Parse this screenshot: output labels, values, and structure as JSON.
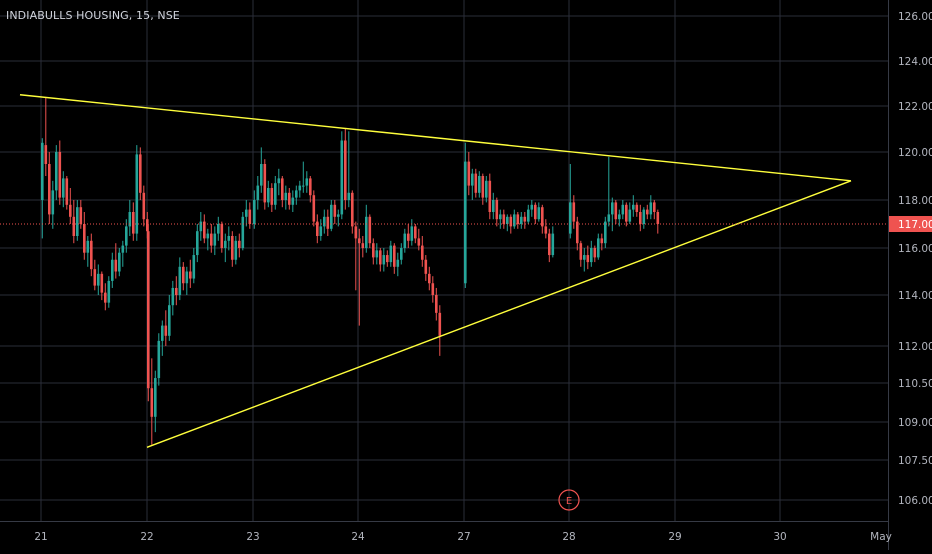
{
  "chart_data": {
    "type": "candlestick",
    "title": "INDIABULLS HOUSING, 15, NSE",
    "y_ticks": [
      106.0,
      107.5,
      109.0,
      110.5,
      112.0,
      114.0,
      116.0,
      118.0,
      120.0,
      122.0,
      124.0,
      126.0
    ],
    "y_tick_labels": [
      "106.00",
      "107.50",
      "109.00",
      "110.50",
      "112.00",
      "114.00",
      "116.00",
      "118.00",
      "120.00",
      "122.00",
      "124.00",
      "126.00"
    ],
    "x_tick_labels": [
      "21",
      "22",
      "23",
      "24",
      "27",
      "28",
      "29",
      "30",
      "May"
    ],
    "last_price": 117.0,
    "last_price_label": "117.00",
    "event_marker": "E",
    "grid": true,
    "colors": {
      "background": "#000000",
      "grid": "#2a2e39",
      "up": "#26a69a",
      "down": "#ef5350",
      "trendline": "#ffff3c",
      "price_line": "#ef5350",
      "axis_text": "#b2b5be"
    },
    "trendlines": [
      {
        "name": "upper",
        "from": {
          "x": "21",
          "y": 122.5
        },
        "to": {
          "x": "30",
          "y": 118.8
        }
      },
      {
        "name": "lower",
        "from": {
          "x": "22",
          "y": 108.0
        },
        "to": {
          "x": "30",
          "y": 118.8
        }
      }
    ],
    "candles": [
      {
        "day": "21",
        "ohlc": [
          [
            118.0,
            120.6,
            116.4,
            120.4
          ],
          [
            120.3,
            122.4,
            119.0,
            119.5
          ],
          [
            119.5,
            120.0,
            117.0,
            117.4
          ],
          [
            117.4,
            118.8,
            116.8,
            118.4
          ],
          [
            118.4,
            120.3,
            118.0,
            120.0
          ],
          [
            120.0,
            120.5,
            117.8,
            118.1
          ],
          [
            118.1,
            119.2,
            117.7,
            118.9
          ],
          [
            118.9,
            119.0,
            117.6,
            117.8
          ],
          [
            117.8,
            118.5,
            117.0,
            117.3
          ],
          [
            117.3,
            118.0,
            116.2,
            116.5
          ],
          [
            116.5,
            118.0,
            116.3,
            117.7
          ],
          [
            117.7,
            118.0,
            116.8,
            117.0
          ],
          [
            117.0,
            117.5,
            115.5,
            115.8
          ],
          [
            115.8,
            116.5,
            115.2,
            116.3
          ],
          [
            116.3,
            116.6,
            114.8,
            115.1
          ],
          [
            115.1,
            115.5,
            114.2,
            114.4
          ],
          [
            114.4,
            115.3,
            114.0,
            114.9
          ],
          [
            114.9,
            115.0,
            113.8,
            114.1
          ],
          [
            114.1,
            114.5,
            113.4,
            113.7
          ],
          [
            113.7,
            114.8,
            113.5,
            114.6
          ],
          [
            114.6,
            115.8,
            114.3,
            115.5
          ],
          [
            115.5,
            116.2,
            114.7,
            115.0
          ],
          [
            115.0,
            116.0,
            114.8,
            115.8
          ],
          [
            115.8,
            116.3,
            115.2,
            116.1
          ],
          [
            116.1,
            117.2,
            115.8,
            116.9
          ],
          [
            116.9,
            118.0,
            116.5,
            117.5
          ],
          [
            117.5,
            117.9,
            116.3,
            116.6
          ],
          [
            116.6,
            120.3,
            116.3,
            119.9
          ],
          [
            119.9,
            120.2,
            118.0,
            118.3
          ],
          [
            118.3,
            118.6,
            116.9,
            117.2
          ],
          [
            117.2,
            117.5,
            116.4,
            116.7
          ]
        ]
      },
      {
        "day": "22",
        "ohlc": [
          [
            116.7,
            117.0,
            109.8,
            110.3
          ],
          [
            110.3,
            111.5,
            108.1,
            109.2
          ],
          [
            109.2,
            111.0,
            108.6,
            110.7
          ],
          [
            110.7,
            112.5,
            110.4,
            112.2
          ],
          [
            112.2,
            113.0,
            111.6,
            112.8
          ],
          [
            112.8,
            113.4,
            112.0,
            112.4
          ],
          [
            112.4,
            114.0,
            112.2,
            113.6
          ],
          [
            113.6,
            114.6,
            113.2,
            114.3
          ],
          [
            114.3,
            114.8,
            113.6,
            114.0
          ],
          [
            114.0,
            115.6,
            113.8,
            115.2
          ],
          [
            115.2,
            115.4,
            114.2,
            114.5
          ],
          [
            114.5,
            115.2,
            114.0,
            115.0
          ],
          [
            115.0,
            115.5,
            114.3,
            114.7
          ],
          [
            114.7,
            116.0,
            114.5,
            115.7
          ],
          [
            115.7,
            117.0,
            115.4,
            116.7
          ],
          [
            116.7,
            117.5,
            116.3,
            117.1
          ],
          [
            117.1,
            117.4,
            116.2,
            116.4
          ],
          [
            116.4,
            116.8,
            115.9,
            116.6
          ],
          [
            116.6,
            117.0,
            115.8,
            116.1
          ],
          [
            116.1,
            116.9,
            115.7,
            116.6
          ],
          [
            116.6,
            117.3,
            116.3,
            117.0
          ],
          [
            117.0,
            117.1,
            115.8,
            116.0
          ],
          [
            116.0,
            116.6,
            115.4,
            116.3
          ],
          [
            116.3,
            116.9,
            115.9,
            116.5
          ],
          [
            116.5,
            116.7,
            115.2,
            115.5
          ],
          [
            115.5,
            116.5,
            115.3,
            116.3
          ],
          [
            116.3,
            116.6,
            115.6,
            116.0
          ],
          [
            116.0,
            117.5,
            115.9,
            117.3
          ],
          [
            117.3,
            118.0,
            116.9,
            117.6
          ],
          [
            117.6,
            117.9,
            116.8,
            117.0
          ]
        ]
      },
      {
        "day": "23",
        "ohlc": [
          [
            117.0,
            118.4,
            116.8,
            118.0
          ],
          [
            118.0,
            119.0,
            117.6,
            118.6
          ],
          [
            118.6,
            120.2,
            118.3,
            119.5
          ],
          [
            119.5,
            119.7,
            117.6,
            117.9
          ],
          [
            117.9,
            118.8,
            117.7,
            118.5
          ],
          [
            118.5,
            118.7,
            117.5,
            117.8
          ],
          [
            117.8,
            119.0,
            117.6,
            118.7
          ],
          [
            118.7,
            119.3,
            118.2,
            118.9
          ],
          [
            118.9,
            119.0,
            117.7,
            118.0
          ],
          [
            118.0,
            118.6,
            117.6,
            118.3
          ],
          [
            118.3,
            118.5,
            117.6,
            117.8
          ],
          [
            117.8,
            118.4,
            117.5,
            118.1
          ],
          [
            118.1,
            118.6,
            117.8,
            118.4
          ],
          [
            118.4,
            118.8,
            118.1,
            118.6
          ],
          [
            118.6,
            119.6,
            118.3,
            118.6
          ],
          [
            118.6,
            119.2,
            118.3,
            118.9
          ],
          [
            118.9,
            119.0,
            117.9,
            118.2
          ],
          [
            118.2,
            118.4,
            116.9,
            117.1
          ],
          [
            117.1,
            117.4,
            116.2,
            116.5
          ],
          [
            116.5,
            117.2,
            116.3,
            116.9
          ],
          [
            116.9,
            117.6,
            116.6,
            117.3
          ],
          [
            117.3,
            117.6,
            116.5,
            116.8
          ],
          [
            116.8,
            118.0,
            116.7,
            117.8
          ],
          [
            117.8,
            118.0,
            117.0,
            117.3
          ],
          [
            117.3,
            117.6,
            116.9,
            117.4
          ],
          [
            117.4,
            120.9,
            117.2,
            120.5
          ],
          [
            120.5,
            121.0,
            117.6,
            118.0
          ],
          [
            118.0,
            120.9,
            117.7,
            118.3
          ],
          [
            118.3,
            118.4,
            116.6,
            116.9
          ],
          [
            116.9,
            117.1,
            114.2,
            116.4
          ]
        ]
      },
      {
        "day": "24",
        "ohlc": [
          [
            116.4,
            116.8,
            112.8,
            116.2
          ],
          [
            116.2,
            116.5,
            115.6,
            116.0
          ],
          [
            116.0,
            117.8,
            115.8,
            117.3
          ],
          [
            117.3,
            117.4,
            116.0,
            116.2
          ],
          [
            116.2,
            116.4,
            115.3,
            115.6
          ],
          [
            115.6,
            116.2,
            115.3,
            115.9
          ],
          [
            115.9,
            116.0,
            115.0,
            115.3
          ],
          [
            115.3,
            116.0,
            115.0,
            115.7
          ],
          [
            115.7,
            115.9,
            115.2,
            115.4
          ],
          [
            115.4,
            116.3,
            115.2,
            116.1
          ],
          [
            116.1,
            116.2,
            114.9,
            115.2
          ],
          [
            115.2,
            115.8,
            114.8,
            115.5
          ],
          [
            115.5,
            116.2,
            115.3,
            116.0
          ],
          [
            116.0,
            116.8,
            115.8,
            116.6
          ],
          [
            116.6,
            117.0,
            116.0,
            116.3
          ],
          [
            116.3,
            117.2,
            116.1,
            116.9
          ],
          [
            116.9,
            117.0,
            116.2,
            116.4
          ],
          [
            116.4,
            116.8,
            115.9,
            116.1
          ],
          [
            116.1,
            116.5,
            115.2,
            115.5
          ],
          [
            115.5,
            115.7,
            114.6,
            114.9
          ],
          [
            114.9,
            115.2,
            114.2,
            114.5
          ],
          [
            114.5,
            114.8,
            113.7,
            114.0
          ],
          [
            114.0,
            114.3,
            113.0,
            113.3
          ],
          [
            113.3,
            113.6,
            111.6,
            112.4
          ]
        ]
      },
      {
        "day": "27",
        "ohlc": [
          [
            114.5,
            120.4,
            114.3,
            119.6
          ],
          [
            119.6,
            120.0,
            118.2,
            118.6
          ],
          [
            118.6,
            119.3,
            118.0,
            119.1
          ],
          [
            119.1,
            119.3,
            118.1,
            118.3
          ],
          [
            118.3,
            119.2,
            118.1,
            119.0
          ],
          [
            119.0,
            119.1,
            117.8,
            118.1
          ],
          [
            118.1,
            119.0,
            117.9,
            118.8
          ],
          [
            118.8,
            119.1,
            117.2,
            117.5
          ],
          [
            117.5,
            118.3,
            117.2,
            118.0
          ],
          [
            118.0,
            118.1,
            116.9,
            117.2
          ],
          [
            117.2,
            117.6,
            116.8,
            117.4
          ],
          [
            117.4,
            117.6,
            116.8,
            117.0
          ],
          [
            117.0,
            117.4,
            116.7,
            117.3
          ],
          [
            117.3,
            117.4,
            116.6,
            116.9
          ],
          [
            116.9,
            117.6,
            116.8,
            117.4
          ],
          [
            117.4,
            117.5,
            116.8,
            117.0
          ],
          [
            117.0,
            117.5,
            116.8,
            117.3
          ],
          [
            117.3,
            117.5,
            116.8,
            117.1
          ],
          [
            117.1,
            117.8,
            117.0,
            117.6
          ],
          [
            117.6,
            118.0,
            117.3,
            117.8
          ],
          [
            117.8,
            117.9,
            117.0,
            117.2
          ],
          [
            117.2,
            117.9,
            117.1,
            117.7
          ],
          [
            117.7,
            117.8,
            116.6,
            116.9
          ],
          [
            116.9,
            117.2,
            116.4,
            116.6
          ],
          [
            116.6,
            116.8,
            115.4,
            115.7
          ],
          [
            115.7,
            116.9,
            115.6,
            116.6
          ]
        ]
      },
      {
        "day": "28",
        "ohlc": [
          [
            116.6,
            119.5,
            116.4,
            117.9
          ],
          [
            117.9,
            118.2,
            116.8,
            117.1
          ],
          [
            117.1,
            117.3,
            115.9,
            116.2
          ],
          [
            116.2,
            116.3,
            115.2,
            115.5
          ],
          [
            115.5,
            116.0,
            115.0,
            115.7
          ],
          [
            115.7,
            116.1,
            115.1,
            115.4
          ],
          [
            115.4,
            116.3,
            115.2,
            116.0
          ],
          [
            116.0,
            116.1,
            115.4,
            115.6
          ],
          [
            115.6,
            116.6,
            115.5,
            116.4
          ],
          [
            116.4,
            116.6,
            115.9,
            116.2
          ],
          [
            116.2,
            117.3,
            116.0,
            117.1
          ],
          [
            117.1,
            119.8,
            116.9,
            117.4
          ],
          [
            117.4,
            118.1,
            116.7,
            117.9
          ],
          [
            117.9,
            118.0,
            117.0,
            117.2
          ],
          [
            117.2,
            117.6,
            116.9,
            117.4
          ],
          [
            117.4,
            118.0,
            117.2,
            117.8
          ],
          [
            117.8,
            117.9,
            116.9,
            117.1
          ],
          [
            117.1,
            117.9,
            117.0,
            117.6
          ],
          [
            117.6,
            118.2,
            117.3,
            117.8
          ],
          [
            117.8,
            117.9,
            117.3,
            117.5
          ],
          [
            117.5,
            117.8,
            116.7,
            117.0
          ],
          [
            117.0,
            117.7,
            116.8,
            117.6
          ],
          [
            117.6,
            117.8,
            117.2,
            117.4
          ],
          [
            117.4,
            118.2,
            117.2,
            117.9
          ],
          [
            117.9,
            118.0,
            117.2,
            117.5
          ],
          [
            117.5,
            117.6,
            116.6,
            117.0
          ]
        ]
      }
    ]
  }
}
